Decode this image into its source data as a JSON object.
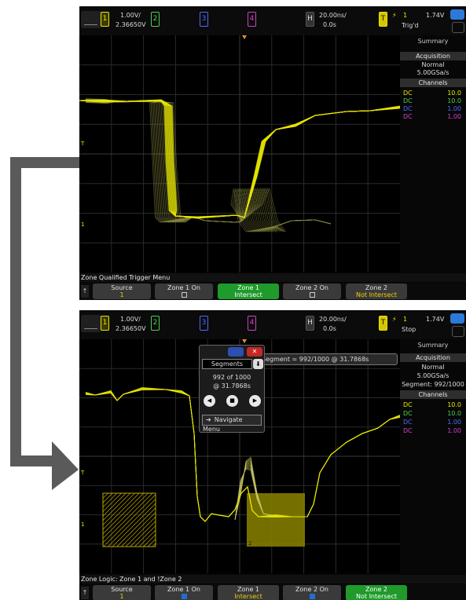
{
  "screen1": {
    "ch1_scale": "1.00V/",
    "ch1_offset": "2.36650V",
    "ch1_num": "1",
    "ch2_num": "2",
    "ch3_num": "3",
    "ch4_num": "4",
    "h_label": "H",
    "h_scale": "20.00ns/",
    "h_offset": "0.0s",
    "trig_label": "T",
    "trig_source": "1",
    "trig_level": "1.74V",
    "trig_status": "Trig'd",
    "summary": "Summary",
    "acq_header": "Acquisition",
    "acq_mode": "Normal",
    "sample_rate": "5.00GSa/s",
    "channels_header": "Channels",
    "channels": [
      {
        "coupling": "DC",
        "value": "10.0",
        "color": "#e8e800"
      },
      {
        "coupling": "DC",
        "value": "10.0",
        "color": "#4ed04e"
      },
      {
        "coupling": "DC",
        "value": "1.00",
        "color": "#4e6cff"
      },
      {
        "coupling": "DC",
        "value": "1.00",
        "color": "#d040d0"
      }
    ],
    "menu_title": "Zone Qualified Trigger Menu",
    "softkeys": [
      {
        "label": "Source",
        "sub": "1"
      },
      {
        "label": "Zone 1 On",
        "sub": ""
      },
      {
        "label": "Zone 1",
        "sub": "Intersect"
      },
      {
        "label": "Zone 2 On",
        "sub": ""
      },
      {
        "label": "Zone 2",
        "sub": "Not Intersect"
      }
    ]
  },
  "screen2": {
    "ch1_scale": "1.00V/",
    "ch1_offset": "2.36650V",
    "ch1_num": "1",
    "ch2_num": "2",
    "ch3_num": "3",
    "ch4_num": "4",
    "h_label": "H",
    "h_scale": "20.00ns/",
    "h_offset": "0.0s",
    "trig_label": "T",
    "trig_source": "1",
    "trig_level": "1.74V",
    "trig_status": "Stop",
    "summary": "Summary",
    "acq_header": "Acquisition",
    "acq_mode": "Normal",
    "sample_rate": "5.00GSa/s",
    "segment_info": "Segment: 992/1000",
    "channels_header": "Channels",
    "channels": [
      {
        "coupling": "DC",
        "value": "10.0",
        "color": "#e8e800"
      },
      {
        "coupling": "DC",
        "value": "10.0",
        "color": "#4ed04e"
      },
      {
        "coupling": "DC",
        "value": "1.00",
        "color": "#4e6cff"
      },
      {
        "coupling": "DC",
        "value": "1.00",
        "color": "#d040d0"
      }
    ],
    "segment_banner": "Segment = 992/1000 @ 31.7868s",
    "popup": {
      "dropdown": "Segments",
      "count": "992 of 1000",
      "time": "@ 31.7868s",
      "navigate": "Navigate Menu"
    },
    "zone1_label": "1",
    "zone2_label": "2",
    "menu_title": "Zone Logic: Zone 1 and !Zone 2",
    "softkeys": [
      {
        "label": "Source",
        "sub": "1"
      },
      {
        "label": "Zone 1 On",
        "sub": ""
      },
      {
        "label": "Zone 1",
        "sub": "Intersect"
      },
      {
        "label": "Zone 2 On",
        "sub": ""
      },
      {
        "label": "Zone 2",
        "sub": "Not Intersect"
      }
    ]
  },
  "colors": {
    "ch1": "#e8e800",
    "ch2": "#4ed04e",
    "ch3": "#4e6cff",
    "ch4": "#d040d0",
    "arrow": "#5a5a5a",
    "active_softkey": "#1f9a2b"
  }
}
